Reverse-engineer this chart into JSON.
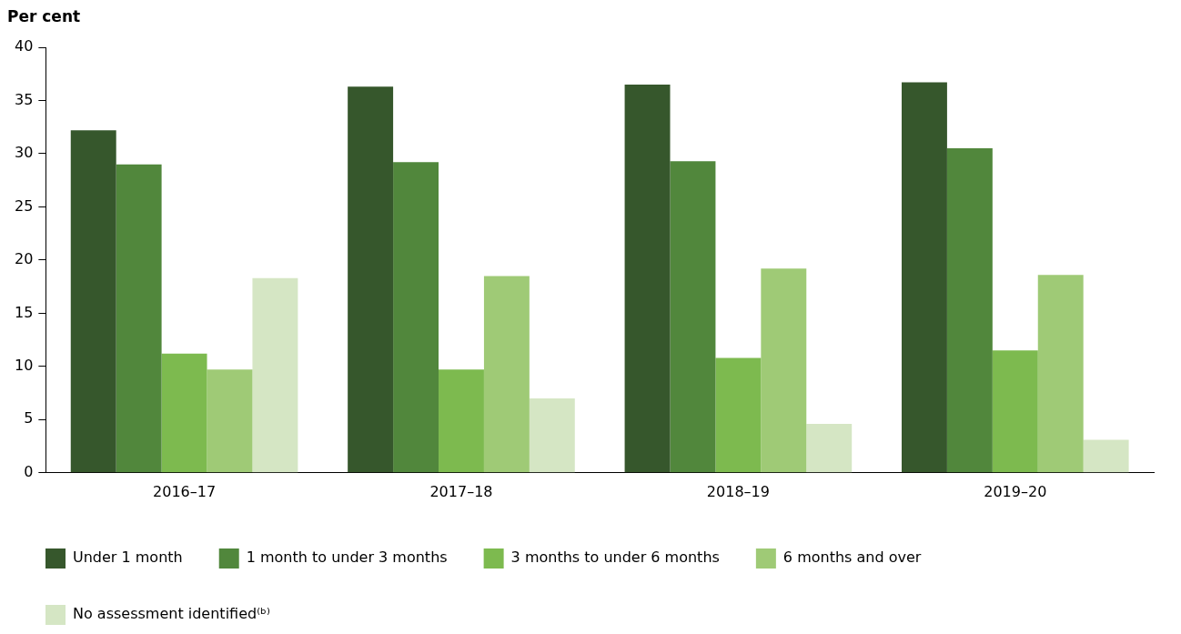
{
  "chart_data": {
    "type": "bar",
    "ylabel": "Per cent",
    "categories": [
      "2016–17",
      "2017–18",
      "2018–19",
      "2019–20"
    ],
    "series": [
      {
        "name": "Under 1 month",
        "color": "#36572c",
        "values": [
          32.2,
          36.3,
          36.5,
          36.7
        ]
      },
      {
        "name": "1 month to under 3 months",
        "color": "#51873c",
        "values": [
          29.0,
          29.2,
          29.3,
          30.5
        ]
      },
      {
        "name": "3 months to under 6 months",
        "color": "#7dba4f",
        "values": [
          11.2,
          9.7,
          10.8,
          11.5
        ]
      },
      {
        "name": "6 months and over",
        "color": "#9fca76",
        "values": [
          9.7,
          18.5,
          19.2,
          18.6
        ]
      },
      {
        "name": "No assessment identified⁽ᵇ⁾",
        "color": "#d5e6c4",
        "values": [
          18.3,
          7.0,
          4.6,
          3.1
        ]
      }
    ],
    "ylim": [
      0,
      40
    ],
    "yticks": [
      0,
      5,
      10,
      15,
      20,
      25,
      30,
      35,
      40
    ],
    "grid": false,
    "legend": "bottom"
  }
}
